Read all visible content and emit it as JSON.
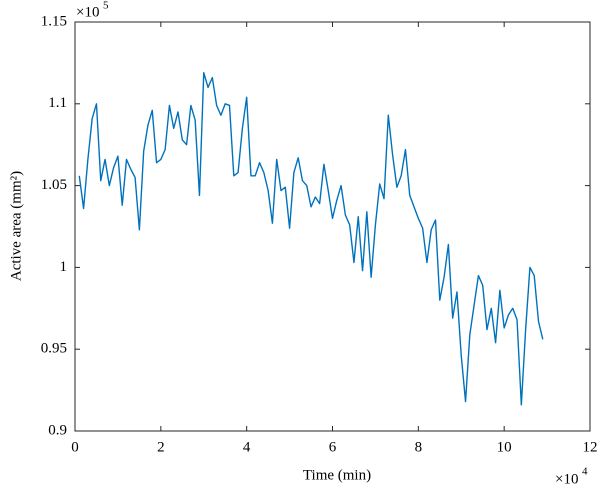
{
  "chart_data": {
    "type": "line",
    "x_label": "Time (min)",
    "y_label": "Active area (mm²)",
    "x_exponent_base": "×10",
    "x_exponent": "4",
    "y_exponent_base": "×10",
    "y_exponent": "5",
    "color": "#0072bd",
    "xlim": [
      0,
      12
    ],
    "xticks": [
      0,
      2,
      4,
      6,
      8,
      10,
      12
    ],
    "ylim": [
      0.9,
      1.15
    ],
    "yticks": [
      0.9,
      0.95,
      1,
      1.05,
      1.1,
      1.15
    ],
    "x": [
      0.1,
      0.2,
      0.3,
      0.4,
      0.5,
      0.6,
      0.7,
      0.8,
      0.9,
      1.0,
      1.1,
      1.2,
      1.3,
      1.4,
      1.5,
      1.6,
      1.7,
      1.8,
      1.9,
      2.0,
      2.1,
      2.2,
      2.3,
      2.4,
      2.5,
      2.6,
      2.7,
      2.8,
      2.9,
      3.0,
      3.1,
      3.2,
      3.3,
      3.4,
      3.5,
      3.6,
      3.7,
      3.8,
      3.9,
      4.0,
      4.1,
      4.2,
      4.3,
      4.4,
      4.5,
      4.6,
      4.7,
      4.8,
      4.9,
      5.0,
      5.1,
      5.2,
      5.3,
      5.4,
      5.5,
      5.6,
      5.7,
      5.8,
      5.9,
      6.0,
      6.1,
      6.2,
      6.3,
      6.4,
      6.5,
      6.6,
      6.7,
      6.8,
      6.9,
      7.0,
      7.1,
      7.2,
      7.3,
      7.4,
      7.5,
      7.6,
      7.7,
      7.8,
      7.9,
      8.0,
      8.1,
      8.2,
      8.3,
      8.4,
      8.5,
      8.6,
      8.7,
      8.8,
      8.9,
      9.0,
      9.1,
      9.2,
      9.3,
      9.4,
      9.5,
      9.6,
      9.7,
      9.8,
      9.9,
      10.0,
      10.1,
      10.2,
      10.3,
      10.4,
      10.5,
      10.6,
      10.7,
      10.8,
      10.9
    ],
    "values": [
      1.056,
      1.036,
      1.066,
      1.091,
      1.1,
      1.053,
      1.066,
      1.05,
      1.061,
      1.068,
      1.038,
      1.066,
      1.06,
      1.055,
      1.023,
      1.071,
      1.087,
      1.096,
      1.064,
      1.066,
      1.072,
      1.099,
      1.085,
      1.095,
      1.078,
      1.075,
      1.099,
      1.09,
      1.044,
      1.119,
      1.11,
      1.116,
      1.099,
      1.093,
      1.1,
      1.099,
      1.056,
      1.058,
      1.085,
      1.104,
      1.056,
      1.056,
      1.064,
      1.058,
      1.047,
      1.027,
      1.066,
      1.047,
      1.049,
      1.024,
      1.058,
      1.067,
      1.053,
      1.05,
      1.037,
      1.043,
      1.039,
      1.063,
      1.047,
      1.03,
      1.041,
      1.05,
      1.032,
      1.026,
      1.003,
      1.031,
      0.998,
      1.034,
      0.994,
      1.026,
      1.051,
      1.042,
      1.093,
      1.069,
      1.049,
      1.056,
      1.072,
      1.044,
      1.037,
      1.03,
      1.024,
      1.003,
      1.023,
      1.029,
      0.98,
      0.994,
      1.014,
      0.969,
      0.985,
      0.946,
      0.918,
      0.959,
      0.977,
      0.995,
      0.989,
      0.962,
      0.975,
      0.954,
      0.986,
      0.963,
      0.971,
      0.975,
      0.968,
      0.916,
      0.962,
      1.0,
      0.995,
      0.967,
      0.956
    ]
  }
}
